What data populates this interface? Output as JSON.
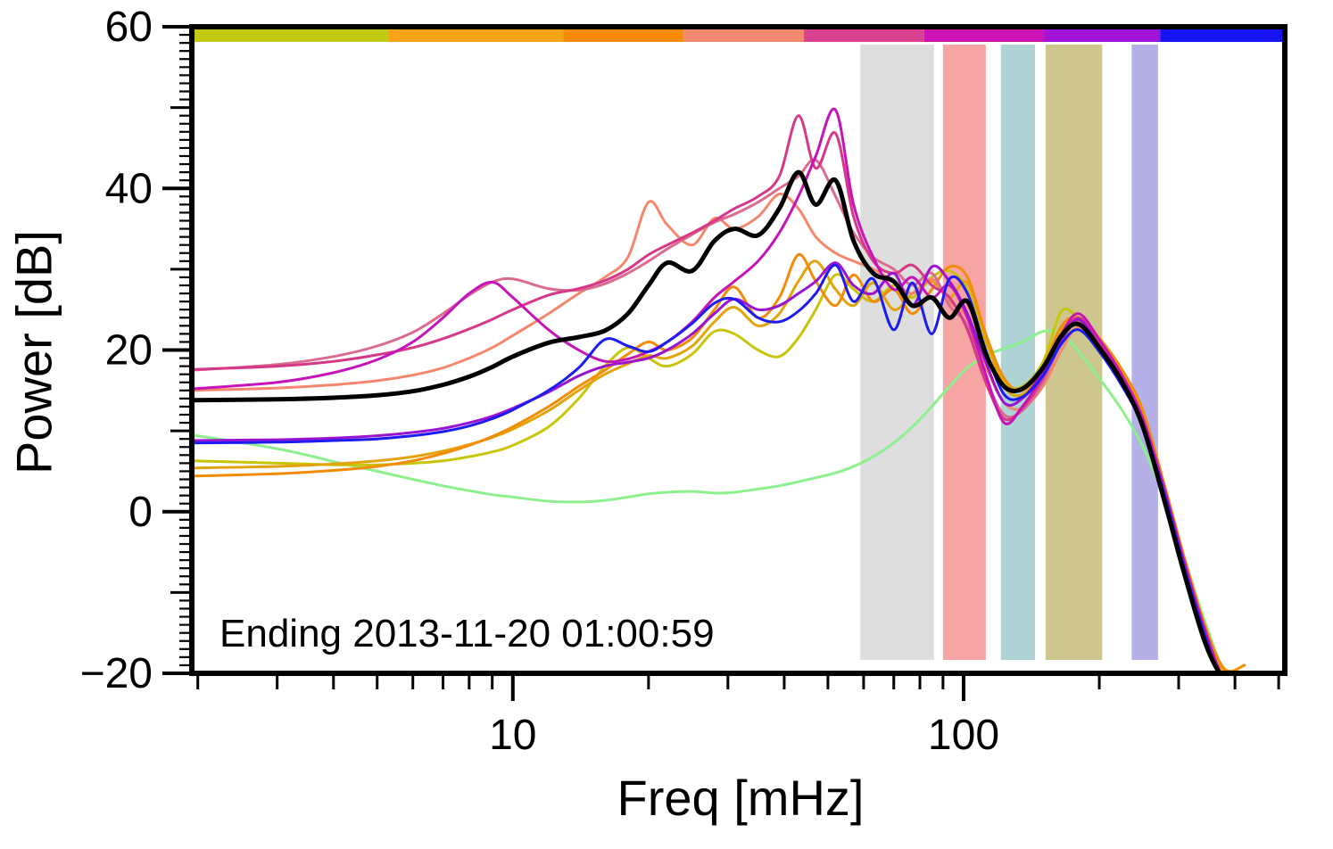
{
  "annotation": "Ending 2013-11-20 01:00:59",
  "axes": {
    "ylabel": "Power [dB]",
    "xlabel": "Freq [mHz]",
    "yticks": [
      {
        "value": 60,
        "label": "60"
      },
      {
        "value": 40,
        "label": "40"
      },
      {
        "value": 20,
        "label": "20"
      },
      {
        "value": 0,
        "label": "0"
      },
      {
        "value": -20,
        "label": "−20"
      }
    ],
    "xticks": [
      {
        "value": 10,
        "label": "10"
      },
      {
        "value": 100,
        "label": "100"
      }
    ],
    "xminor": [
      2,
      3,
      4,
      5,
      6,
      7,
      8,
      9,
      20,
      30,
      40,
      50,
      60,
      70,
      80,
      90,
      200,
      300,
      400,
      500
    ]
  },
  "chart_data": {
    "type": "line",
    "title": "",
    "xlabel": "Freq [mHz]",
    "ylabel": "Power [dB]",
    "xscale": "log",
    "xlim": [
      1.94,
      516
    ],
    "ylim": [
      -20,
      60
    ],
    "grid": false,
    "legend": "none",
    "x": [
      1.94,
      3,
      4,
      5,
      6,
      7,
      8,
      9,
      10,
      12,
      14,
      16,
      18,
      20,
      22,
      25,
      28,
      31,
      35,
      39,
      43,
      47,
      52,
      57,
      63,
      70,
      77,
      85,
      93,
      102,
      112,
      123,
      135,
      150,
      165,
      180,
      200,
      225,
      250,
      280,
      310,
      345,
      380,
      420
    ],
    "series": [
      {
        "name": "palegreen",
        "color": "#8cf08c",
        "width": 3,
        "values": [
          9.5,
          7.8,
          6.2,
          5.0,
          4.0,
          3.2,
          2.6,
          2.1,
          1.8,
          1.3,
          1.2,
          1.4,
          1.8,
          2.2,
          2.4,
          2.5,
          2.3,
          2.4,
          2.8,
          3.2,
          3.7,
          4.2,
          4.8,
          5.6,
          6.8,
          8.5,
          10.5,
          13.0,
          15.5,
          17.8,
          19.3,
          20.2,
          21.0,
          22.3,
          22.0,
          19.8,
          16.5,
          12.5,
          8.0,
          1.5,
          -6.0,
          -14.0,
          -20.0,
          -23.0
        ]
      },
      {
        "name": "yellowgreen",
        "color": "#c8c408",
        "width": 3,
        "values": [
          6.3,
          6.0,
          5.8,
          5.8,
          6.0,
          6.3,
          6.8,
          7.4,
          8.2,
          10.5,
          14.0,
          18.0,
          20.3,
          19.0,
          18.0,
          19.5,
          22.3,
          22.0,
          20.0,
          19.2,
          21.5,
          25.0,
          29.3,
          27.5,
          26.0,
          28.0,
          26.5,
          29.0,
          29.8,
          27.5,
          21.0,
          16.0,
          15.5,
          18.5,
          24.8,
          23.8,
          21.0,
          17.0,
          11.5,
          2.0,
          -7.0,
          -15.5,
          -21.0,
          -21.5
        ]
      },
      {
        "name": "gold",
        "color": "#e2a30d",
        "width": 3,
        "values": [
          5.4,
          5.6,
          5.9,
          6.3,
          6.8,
          7.5,
          8.3,
          9.2,
          10.2,
          12.5,
          15.0,
          17.0,
          18.3,
          19.3,
          19.0,
          20.5,
          23.5,
          25.3,
          23.0,
          24.5,
          28.5,
          31.0,
          27.5,
          25.5,
          28.3,
          25.0,
          27.0,
          28.5,
          26.5,
          28.3,
          21.5,
          15.5,
          14.5,
          17.5,
          22.5,
          23.5,
          21.0,
          17.2,
          12.0,
          2.5,
          -6.5,
          -15.0,
          -20.0,
          -20.5
        ]
      },
      {
        "name": "orange",
        "color": "#f28c06",
        "width": 3,
        "values": [
          4.4,
          4.7,
          5.1,
          5.6,
          6.3,
          7.2,
          8.2,
          9.3,
          10.5,
          13.0,
          15.5,
          17.5,
          19.5,
          21.0,
          20.0,
          21.5,
          25.0,
          27.8,
          24.0,
          26.5,
          31.8,
          28.5,
          25.5,
          29.3,
          26.0,
          27.5,
          24.5,
          27.5,
          30.3,
          29.0,
          22.0,
          16.5,
          15.0,
          18.0,
          23.0,
          24.0,
          21.5,
          17.5,
          12.5,
          3.0,
          -6.0,
          -14.5,
          -19.5,
          -19.0
        ]
      },
      {
        "name": "salmon",
        "color": "#f4876c",
        "width": 3,
        "values": [
          15.0,
          15.3,
          15.7,
          16.2,
          16.9,
          17.8,
          19.0,
          20.3,
          21.8,
          24.5,
          27.0,
          29.0,
          31.5,
          38.3,
          35.5,
          33.0,
          36.3,
          35.0,
          36.5,
          39.3,
          37.5,
          34.0,
          32.0,
          31.0,
          30.0,
          28.5,
          27.0,
          28.8,
          26.0,
          24.0,
          18.0,
          13.5,
          12.8,
          15.5,
          20.0,
          22.8,
          20.0,
          15.8,
          10.8,
          1.5,
          -7.5,
          -16.0,
          -21.5,
          -23.0
        ]
      },
      {
        "name": "palevioletred",
        "color": "#db6b8f",
        "width": 3,
        "values": [
          17.5,
          18.2,
          19.2,
          20.5,
          22.2,
          24.5,
          26.8,
          28.4,
          28.8,
          27.6,
          27.4,
          28.2,
          29.5,
          31.0,
          32.5,
          34.3,
          35.8,
          36.8,
          38.3,
          40.0,
          41.5,
          43.5,
          39.0,
          34.5,
          31.5,
          30.0,
          28.0,
          29.5,
          25.5,
          23.0,
          16.5,
          12.0,
          12.5,
          16.0,
          21.0,
          23.5,
          20.8,
          16.3,
          11.0,
          2.0,
          -7.0,
          -15.5,
          -21.0,
          -23.0
        ]
      },
      {
        "name": "pinkmagenta",
        "color": "#d63889",
        "width": 3,
        "values": [
          17.6,
          18.0,
          18.6,
          19.4,
          20.3,
          21.4,
          22.6,
          23.8,
          25.0,
          26.8,
          27.6,
          28.6,
          30.0,
          31.8,
          33.0,
          34.5,
          36.0,
          37.5,
          39.0,
          41.5,
          49.0,
          42.5,
          46.8,
          36.5,
          31.0,
          29.5,
          30.5,
          28.0,
          26.5,
          22.5,
          16.0,
          11.5,
          12.8,
          16.5,
          21.5,
          24.0,
          21.0,
          16.5,
          11.3,
          2.3,
          -6.8,
          -15.3,
          -21.3,
          -23.0
        ]
      },
      {
        "name": "magenta",
        "color": "#c515b8",
        "width": 3,
        "values": [
          15.2,
          16.0,
          17.2,
          18.8,
          21.0,
          24.0,
          27.0,
          28.4,
          26.5,
          22.5,
          20.0,
          18.6,
          18.9,
          19.8,
          21.0,
          23.5,
          26.5,
          28.5,
          31.0,
          34.5,
          39.0,
          44.0,
          49.7,
          38.0,
          31.5,
          27.5,
          29.0,
          26.5,
          28.0,
          24.0,
          17.0,
          11.0,
          13.0,
          17.0,
          22.0,
          24.5,
          21.3,
          16.8,
          11.5,
          2.5,
          -6.5,
          -15.0,
          -21.0,
          -23.0
        ]
      },
      {
        "name": "purple",
        "color": "#9a14cf",
        "width": 3,
        "values": [
          8.8,
          8.9,
          9.1,
          9.4,
          9.8,
          10.3,
          11.0,
          11.8,
          12.8,
          14.8,
          16.8,
          18.0,
          18.5,
          19.0,
          20.0,
          22.0,
          24.5,
          26.3,
          25.0,
          25.5,
          27.0,
          28.5,
          30.8,
          28.0,
          27.0,
          29.5,
          25.5,
          30.3,
          28.5,
          24.5,
          18.5,
          13.5,
          14.0,
          17.3,
          21.3,
          23.8,
          20.5,
          16.0,
          11.0,
          2.0,
          -7.0,
          -15.5,
          -21.5,
          -23.0
        ]
      },
      {
        "name": "blue",
        "color": "#1c1cf0",
        "width": 3,
        "values": [
          8.5,
          8.6,
          8.8,
          9.0,
          9.4,
          9.9,
          10.6,
          11.5,
          12.6,
          15.0,
          17.8,
          21.3,
          20.5,
          19.8,
          21.0,
          23.3,
          25.8,
          26.3,
          24.0,
          23.5,
          24.8,
          27.0,
          30.5,
          26.0,
          28.8,
          22.5,
          28.3,
          22.0,
          28.8,
          27.0,
          20.0,
          14.5,
          14.2,
          16.8,
          20.8,
          22.5,
          19.8,
          15.5,
          10.5,
          1.8,
          -7.3,
          -15.8,
          -21.8,
          -23.0
        ]
      },
      {
        "name": "mean-black",
        "color": "#000000",
        "width": 5,
        "values": [
          13.8,
          13.9,
          14.1,
          14.4,
          14.9,
          15.7,
          16.7,
          17.9,
          19.2,
          20.9,
          21.6,
          22.4,
          24.5,
          28.0,
          30.8,
          29.8,
          33.5,
          35.0,
          34.2,
          37.5,
          42.0,
          38.0,
          41.0,
          33.5,
          29.5,
          28.5,
          25.5,
          26.5,
          24.0,
          26.0,
          19.5,
          15.5,
          15.2,
          17.8,
          21.8,
          23.2,
          20.3,
          16.0,
          10.5,
          1.0,
          -8.0,
          -16.5,
          -21.0,
          -23.0
        ]
      }
    ],
    "bands": [
      {
        "name": "gray",
        "color": "#dedede",
        "from": 59,
        "to": 86
      },
      {
        "name": "red",
        "color": "#f7a4a4",
        "from": 90,
        "to": 112
      },
      {
        "name": "teal",
        "color": "#aed4d6",
        "from": 121,
        "to": 144
      },
      {
        "name": "khaki",
        "color": "#cdc68e",
        "from": 152,
        "to": 203
      },
      {
        "name": "periwinkle",
        "color": "#b5b1e8",
        "from": 236,
        "to": 270
      }
    ],
    "colorbar_segments": [
      {
        "color": "#c3ca14",
        "from": 0.0,
        "to": 0.18
      },
      {
        "color": "#f7a418",
        "from": 0.18,
        "to": 0.34
      },
      {
        "color": "#f78c0a",
        "from": 0.34,
        "to": 0.45
      },
      {
        "color": "#f4876c",
        "from": 0.45,
        "to": 0.56
      },
      {
        "color": "#d84090",
        "from": 0.56,
        "to": 0.67
      },
      {
        "color": "#cc14b4",
        "from": 0.67,
        "to": 0.78
      },
      {
        "color": "#a014d8",
        "from": 0.78,
        "to": 0.886
      },
      {
        "color": "#1414f5",
        "from": 0.886,
        "to": 1.0
      }
    ]
  }
}
